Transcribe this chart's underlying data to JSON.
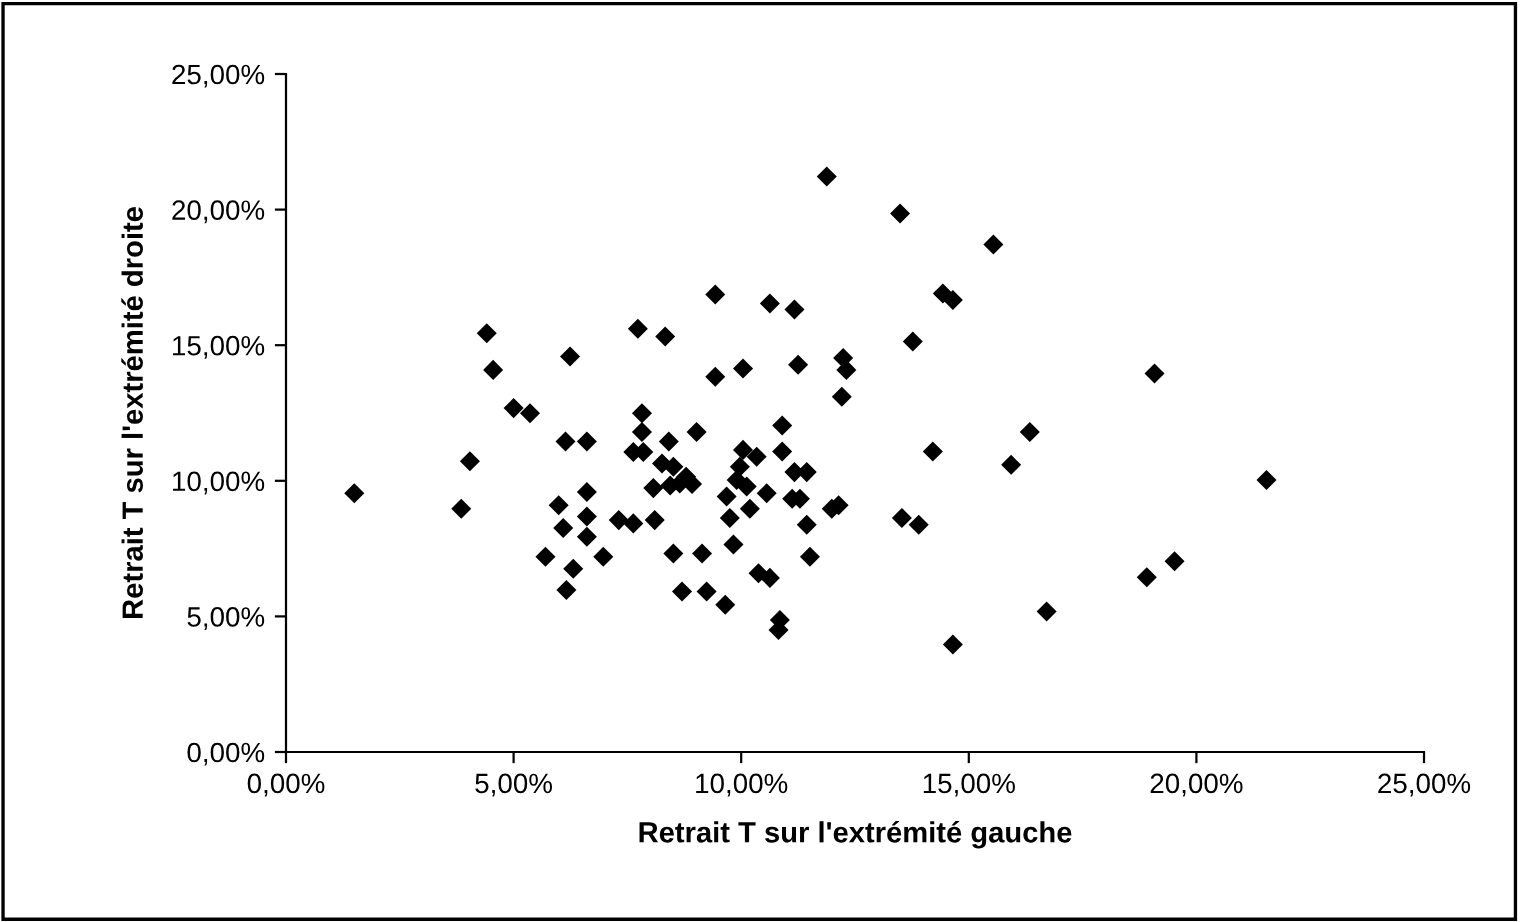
{
  "chart_data": {
    "type": "scatter",
    "xlabel": "Retrait T sur l'extrémité gauche",
    "ylabel": "Retrait T sur l'extrémité droite",
    "marker": "diamond",
    "grid": false,
    "xlim": [
      0,
      25
    ],
    "ylim": [
      0,
      25
    ],
    "xticks": [
      {
        "value": 0,
        "label": "0,00%"
      },
      {
        "value": 5,
        "label": "5,00%"
      },
      {
        "value": 10,
        "label": "10,00%"
      },
      {
        "value": 15,
        "label": "15,00%"
      },
      {
        "value": 20,
        "label": "20,00%"
      },
      {
        "value": 25,
        "label": "25,00%"
      }
    ],
    "yticks": [
      {
        "value": 0,
        "label": "0,00%"
      },
      {
        "value": 5,
        "label": "5,00%"
      },
      {
        "value": 10,
        "label": "10,00%"
      },
      {
        "value": 15,
        "label": "15,00%"
      },
      {
        "value": 20,
        "label": "20,00%"
      },
      {
        "value": 25,
        "label": "25,00%"
      }
    ],
    "series": [
      {
        "color": "#000000",
        "x": [
          1.5,
          4.41,
          4.55,
          6.24,
          7.73,
          8.33,
          5.0,
          5.36,
          4.04,
          3.85,
          6.14,
          6.61,
          7.82,
          7.82,
          7.63,
          7.85,
          8.41,
          8.26,
          6.61,
          5.99,
          6.61,
          6.09,
          6.61,
          5.7,
          6.97,
          6.31,
          6.16,
          7.31,
          7.63,
          8.1,
          8.51,
          8.07,
          8.44,
          11.88,
          13.49,
          15.54,
          9.43,
          10.63,
          11.17,
          14.43,
          14.65,
          13.77,
          9.43,
          10.04,
          11.25,
          12.24,
          12.31,
          12.21,
          9.02,
          10.9,
          14.21,
          16.34,
          15.93,
          10.04,
          10.34,
          9.97,
          9.9,
          10.12,
          10.9,
          11.17,
          11.44,
          10.56,
          11.12,
          11.29,
          9.68,
          10.19,
          9.75,
          11.99,
          12.14,
          11.44,
          13.53,
          13.9,
          9.83,
          9.14,
          11.51,
          10.38,
          10.63,
          8.7,
          9.24,
          9.65,
          10.85,
          10.82,
          14.65,
          8.51,
          8.65,
          8.79,
          8.92,
          19.08,
          21.54,
          18.91,
          19.52,
          16.71
        ],
        "values": [
          9.54,
          15.44,
          14.09,
          14.58,
          15.61,
          15.32,
          12.68,
          12.49,
          10.72,
          8.97,
          11.45,
          11.45,
          12.49,
          11.8,
          11.06,
          11.06,
          11.45,
          10.64,
          9.59,
          9.1,
          8.68,
          8.26,
          7.94,
          7.2,
          7.2,
          6.76,
          5.97,
          8.55,
          8.43,
          8.55,
          7.32,
          9.73,
          9.83,
          21.22,
          19.86,
          18.71,
          16.87,
          16.54,
          16.32,
          16.91,
          16.67,
          15.14,
          13.84,
          14.14,
          14.28,
          14.53,
          14.09,
          13.1,
          11.8,
          12.04,
          11.08,
          11.8,
          10.59,
          11.14,
          10.89,
          10.52,
          10.03,
          9.79,
          11.08,
          10.32,
          10.32,
          9.54,
          9.34,
          9.34,
          9.42,
          8.97,
          8.63,
          8.97,
          9.1,
          8.38,
          8.63,
          8.38,
          7.65,
          7.32,
          7.2,
          6.59,
          6.42,
          5.92,
          5.92,
          5.43,
          4.87,
          4.5,
          3.96,
          10.52,
          9.9,
          10.15,
          9.88,
          13.96,
          10.03,
          6.44,
          7.03,
          5.18
        ]
      }
    ]
  }
}
